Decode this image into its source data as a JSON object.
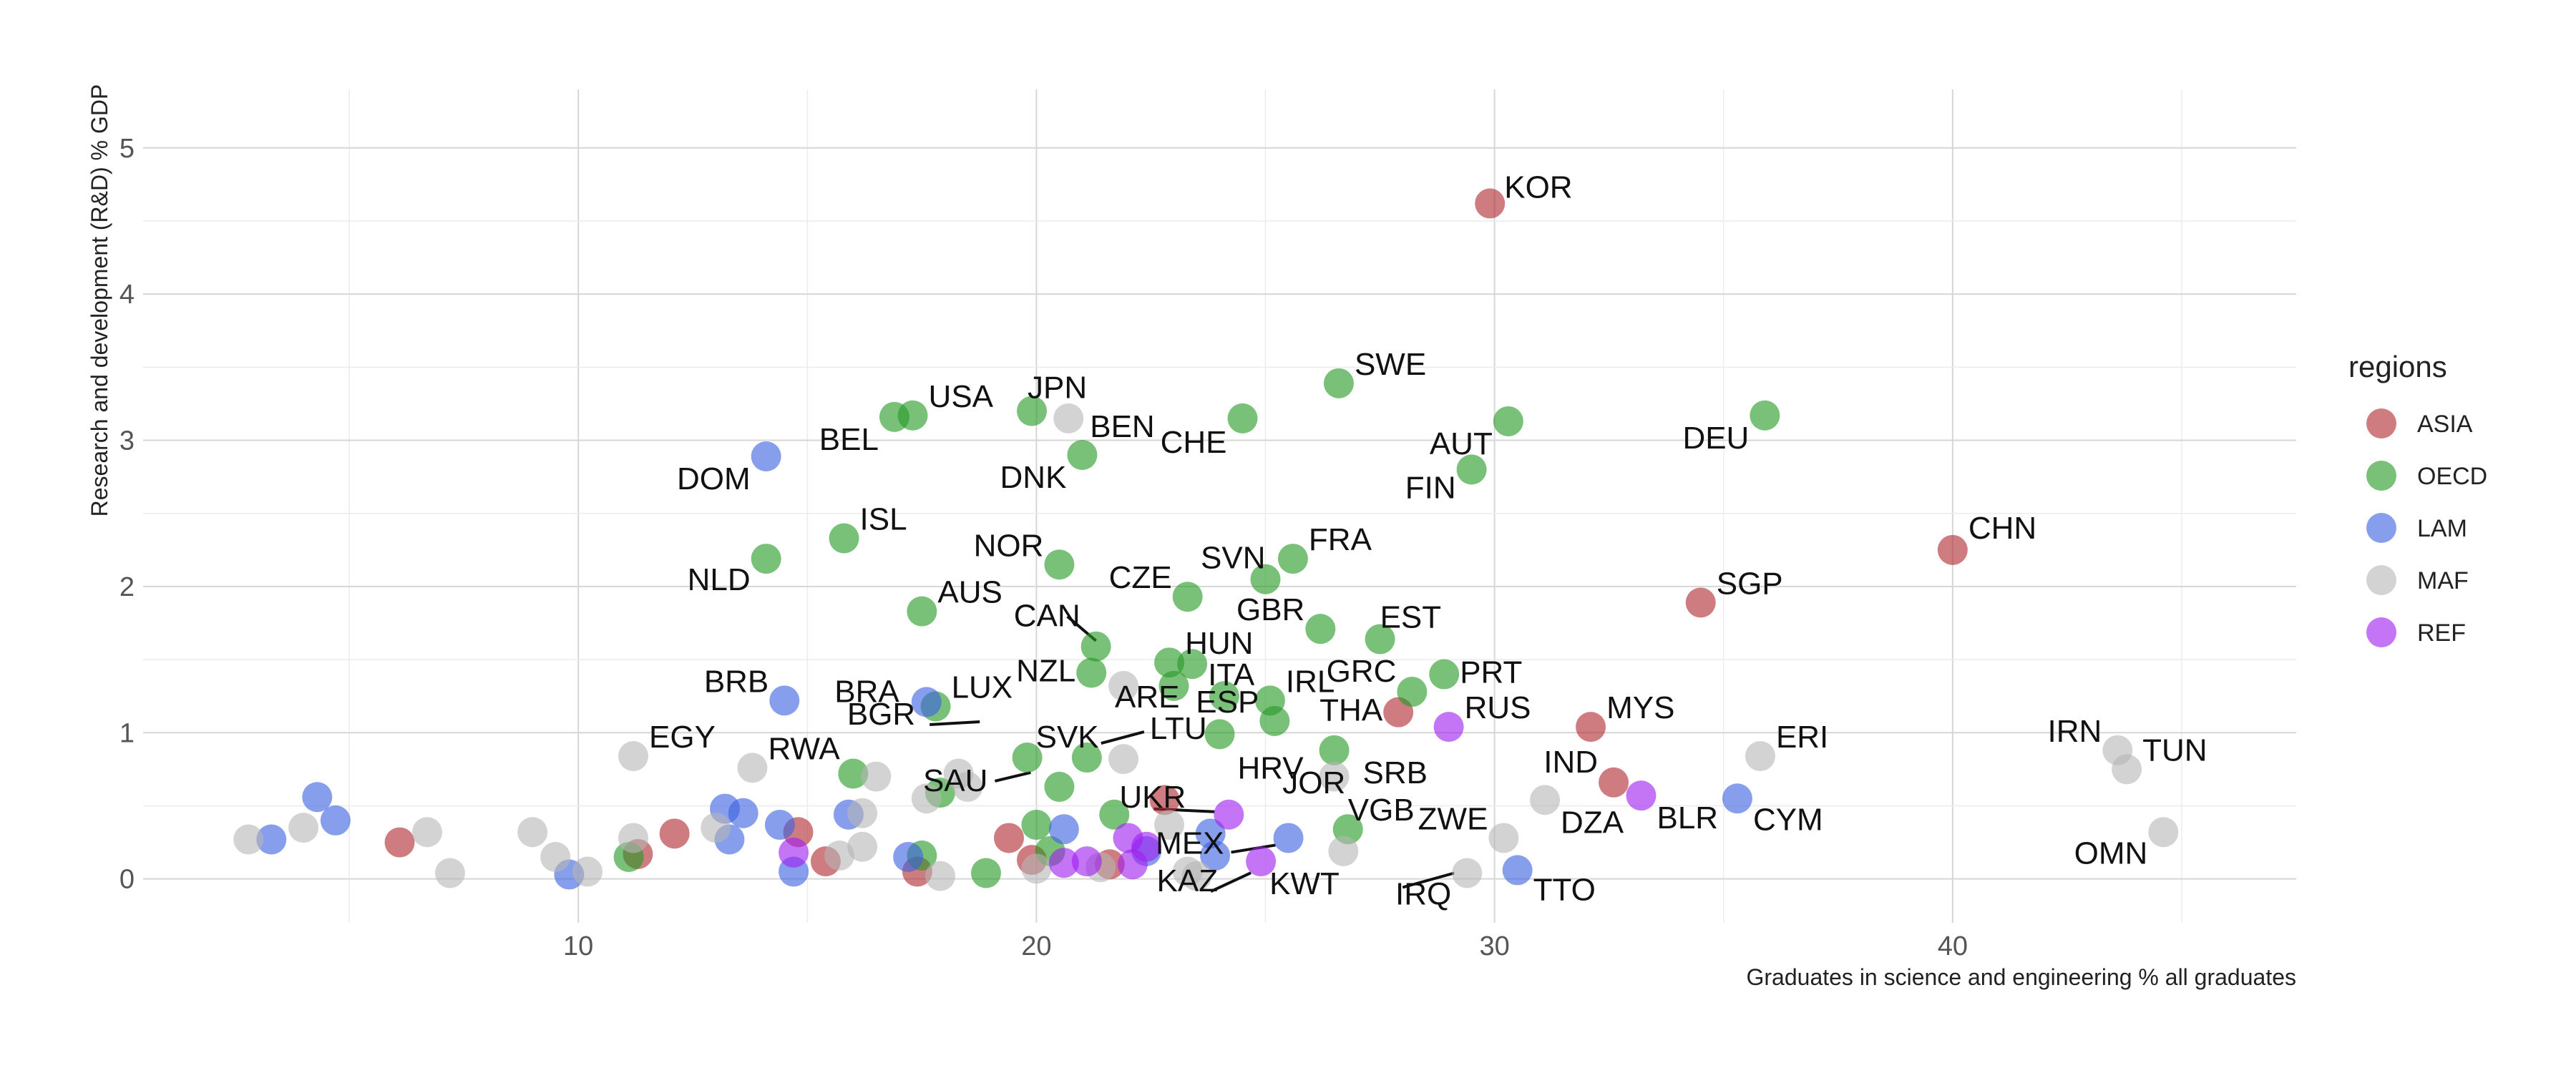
{
  "chart_data": {
    "type": "scatter",
    "xlabel": "Graduates in science and engineering % all graduates",
    "ylabel": "Research and development (R&D) % GDP",
    "xlim": [
      0.5,
      47.5
    ],
    "ylim": [
      -0.3,
      5.4
    ],
    "x_ticks": [
      10,
      20,
      30,
      40
    ],
    "y_ticks": [
      0,
      1,
      2,
      3,
      4,
      5
    ],
    "grid": true,
    "legend": {
      "title": "regions",
      "position": "right",
      "entries": [
        {
          "name": "ASIA",
          "color": "#b22b34"
        },
        {
          "name": "OECD",
          "color": "#279a27"
        },
        {
          "name": "LAM",
          "color": "#3d63e0"
        },
        {
          "name": "MAF",
          "color": "#b5b5b5"
        },
        {
          "name": "REF",
          "color": "#a020f0"
        }
      ]
    },
    "points": [
      {
        "x": 29.9,
        "y": 4.62,
        "region": "ASIA",
        "label": "KOR"
      },
      {
        "x": 40.0,
        "y": 2.25,
        "region": "ASIA",
        "label": "CHN"
      },
      {
        "x": 34.5,
        "y": 1.89,
        "region": "ASIA",
        "label": "SGP"
      },
      {
        "x": 32.1,
        "y": 1.04,
        "region": "ASIA",
        "label": "MYS"
      },
      {
        "x": 27.9,
        "y": 1.14,
        "region": "ASIA",
        "label": "THA"
      },
      {
        "x": 32.6,
        "y": 0.66,
        "region": "ASIA",
        "label": "IND"
      },
      {
        "x": 22.8,
        "y": 0.54,
        "region": "ASIA",
        "label": ""
      },
      {
        "x": 6.1,
        "y": 0.25,
        "region": "ASIA",
        "label": ""
      },
      {
        "x": 12.1,
        "y": 0.31,
        "region": "ASIA",
        "label": ""
      },
      {
        "x": 11.3,
        "y": 0.17,
        "region": "ASIA",
        "label": ""
      },
      {
        "x": 14.8,
        "y": 0.32,
        "region": "ASIA",
        "label": ""
      },
      {
        "x": 15.4,
        "y": 0.12,
        "region": "ASIA",
        "label": ""
      },
      {
        "x": 17.4,
        "y": 0.05,
        "region": "ASIA",
        "label": ""
      },
      {
        "x": 19.4,
        "y": 0.28,
        "region": "ASIA",
        "label": ""
      },
      {
        "x": 19.9,
        "y": 0.13,
        "region": "ASIA",
        "label": ""
      },
      {
        "x": 21.6,
        "y": 0.1,
        "region": "ASIA",
        "label": ""
      },
      {
        "x": 26.6,
        "y": 3.39,
        "region": "OECD",
        "label": "SWE"
      },
      {
        "x": 30.3,
        "y": 3.13,
        "region": "OECD",
        "label": "AUT"
      },
      {
        "x": 35.9,
        "y": 3.17,
        "region": "OECD",
        "label": "DEU"
      },
      {
        "x": 29.5,
        "y": 2.8,
        "region": "OECD",
        "label": "FIN"
      },
      {
        "x": 17.3,
        "y": 3.17,
        "region": "OECD",
        "label": "USA"
      },
      {
        "x": 16.9,
        "y": 3.16,
        "region": "OECD",
        "label": "BEL"
      },
      {
        "x": 19.9,
        "y": 3.2,
        "region": "OECD",
        "label": "JPN"
      },
      {
        "x": 24.5,
        "y": 3.15,
        "region": "OECD",
        "label": "CHE"
      },
      {
        "x": 21.0,
        "y": 2.9,
        "region": "OECD",
        "label": "DNK"
      },
      {
        "x": 15.8,
        "y": 2.33,
        "region": "OECD",
        "label": "ISL"
      },
      {
        "x": 14.1,
        "y": 2.19,
        "region": "OECD",
        "label": "NLD"
      },
      {
        "x": 20.5,
        "y": 2.15,
        "region": "OECD",
        "label": "NOR"
      },
      {
        "x": 25.6,
        "y": 2.19,
        "region": "OECD",
        "label": "FRA"
      },
      {
        "x": 25.0,
        "y": 2.05,
        "region": "OECD",
        "label": "SVN"
      },
      {
        "x": 23.3,
        "y": 1.93,
        "region": "OECD",
        "label": "CZE"
      },
      {
        "x": 17.5,
        "y": 1.83,
        "region": "OECD",
        "label": "AUS"
      },
      {
        "x": 26.2,
        "y": 1.71,
        "region": "OECD",
        "label": "GBR"
      },
      {
        "x": 27.5,
        "y": 1.64,
        "region": "OECD",
        "label": "EST"
      },
      {
        "x": 21.3,
        "y": 1.59,
        "region": "OECD",
        "label": "CAN"
      },
      {
        "x": 21.2,
        "y": 1.41,
        "region": "OECD",
        "label": "NZL"
      },
      {
        "x": 22.9,
        "y": 1.48,
        "region": "OECD",
        "label": "HUN"
      },
      {
        "x": 23.4,
        "y": 1.47,
        "region": "OECD",
        "label": "ITA"
      },
      {
        "x": 23.0,
        "y": 1.32,
        "region": "OECD",
        "label": ""
      },
      {
        "x": 24.1,
        "y": 1.25,
        "region": "OECD",
        "label": ""
      },
      {
        "x": 28.9,
        "y": 1.4,
        "region": "OECD",
        "label": "PRT"
      },
      {
        "x": 28.2,
        "y": 1.28,
        "region": "OECD",
        "label": "GRC"
      },
      {
        "x": 25.1,
        "y": 1.22,
        "region": "OECD",
        "label": "IRL"
      },
      {
        "x": 25.2,
        "y": 1.08,
        "region": "OECD",
        "label": "ESP"
      },
      {
        "x": 24.0,
        "y": 0.99,
        "region": "OECD",
        "label": ""
      },
      {
        "x": 17.8,
        "y": 1.18,
        "region": "OECD",
        "label": "LUX"
      },
      {
        "x": 19.8,
        "y": 0.83,
        "region": "OECD",
        "label": "SVK"
      },
      {
        "x": 20.5,
        "y": 0.63,
        "region": "OECD",
        "label": ""
      },
      {
        "x": 21.1,
        "y": 0.83,
        "region": "OECD",
        "label": ""
      },
      {
        "x": 26.5,
        "y": 0.88,
        "region": "OECD",
        "label": ""
      },
      {
        "x": 16.0,
        "y": 0.72,
        "region": "OECD",
        "label": ""
      },
      {
        "x": 17.9,
        "y": 0.59,
        "region": "OECD",
        "label": ""
      },
      {
        "x": 26.8,
        "y": 0.34,
        "region": "OECD",
        "label": ""
      },
      {
        "x": 20.0,
        "y": 0.37,
        "region": "OECD",
        "label": ""
      },
      {
        "x": 20.3,
        "y": 0.19,
        "region": "OECD",
        "label": ""
      },
      {
        "x": 21.7,
        "y": 0.44,
        "region": "OECD",
        "label": ""
      },
      {
        "x": 17.5,
        "y": 0.16,
        "region": "OECD",
        "label": ""
      },
      {
        "x": 18.9,
        "y": 0.04,
        "region": "OECD",
        "label": ""
      },
      {
        "x": 11.1,
        "y": 0.15,
        "region": "OECD",
        "label": ""
      },
      {
        "x": 14.1,
        "y": 2.89,
        "region": "LAM",
        "label": "DOM"
      },
      {
        "x": 14.5,
        "y": 1.22,
        "region": "LAM",
        "label": "BRB"
      },
      {
        "x": 17.6,
        "y": 1.21,
        "region": "LAM",
        "label": "BRA"
      },
      {
        "x": 35.3,
        "y": 0.55,
        "region": "LAM",
        "label": "CYM"
      },
      {
        "x": 30.5,
        "y": 0.06,
        "region": "LAM",
        "label": "TTO"
      },
      {
        "x": 25.5,
        "y": 0.28,
        "region": "LAM",
        "label": ""
      },
      {
        "x": 3.3,
        "y": 0.27,
        "region": "LAM",
        "label": ""
      },
      {
        "x": 4.3,
        "y": 0.56,
        "region": "LAM",
        "label": ""
      },
      {
        "x": 4.7,
        "y": 0.4,
        "region": "LAM",
        "label": ""
      },
      {
        "x": 9.8,
        "y": 0.03,
        "region": "LAM",
        "label": ""
      },
      {
        "x": 13.2,
        "y": 0.48,
        "region": "LAM",
        "label": ""
      },
      {
        "x": 13.6,
        "y": 0.45,
        "region": "LAM",
        "label": ""
      },
      {
        "x": 13.3,
        "y": 0.27,
        "region": "LAM",
        "label": ""
      },
      {
        "x": 14.4,
        "y": 0.37,
        "region": "LAM",
        "label": ""
      },
      {
        "x": 15.9,
        "y": 0.44,
        "region": "LAM",
        "label": ""
      },
      {
        "x": 14.7,
        "y": 0.05,
        "region": "LAM",
        "label": ""
      },
      {
        "x": 17.2,
        "y": 0.15,
        "region": "LAM",
        "label": ""
      },
      {
        "x": 20.6,
        "y": 0.34,
        "region": "LAM",
        "label": ""
      },
      {
        "x": 22.4,
        "y": 0.19,
        "region": "LAM",
        "label": ""
      },
      {
        "x": 23.8,
        "y": 0.31,
        "region": "LAM",
        "label": ""
      },
      {
        "x": 23.9,
        "y": 0.16,
        "region": "LAM",
        "label": ""
      },
      {
        "x": 20.7,
        "y": 3.15,
        "region": "MAF",
        "label": "BEN"
      },
      {
        "x": 11.2,
        "y": 0.84,
        "region": "MAF",
        "label": "EGY"
      },
      {
        "x": 13.8,
        "y": 0.76,
        "region": "MAF",
        "label": "RWA"
      },
      {
        "x": 21.9,
        "y": 1.32,
        "region": "MAF",
        "label": "ARE"
      },
      {
        "x": 35.8,
        "y": 0.84,
        "region": "MAF",
        "label": "ERI"
      },
      {
        "x": 43.6,
        "y": 0.88,
        "region": "MAF",
        "label": "IRN"
      },
      {
        "x": 43.8,
        "y": 0.75,
        "region": "MAF",
        "label": "TUN"
      },
      {
        "x": 44.6,
        "y": 0.32,
        "region": "MAF",
        "label": "OMN"
      },
      {
        "x": 31.1,
        "y": 0.54,
        "region": "MAF",
        "label": "DZA"
      },
      {
        "x": 30.2,
        "y": 0.28,
        "region": "MAF",
        "label": "ZWE"
      },
      {
        "x": 29.4,
        "y": 0.04,
        "region": "MAF",
        "label": "IRQ"
      },
      {
        "x": 26.5,
        "y": 0.7,
        "region": "MAF",
        "label": ""
      },
      {
        "x": 21.9,
        "y": 0.82,
        "region": "MAF",
        "label": ""
      },
      {
        "x": 26.7,
        "y": 0.19,
        "region": "MAF",
        "label": ""
      },
      {
        "x": 2.8,
        "y": 0.27,
        "region": "MAF",
        "label": ""
      },
      {
        "x": 4.0,
        "y": 0.35,
        "region": "MAF",
        "label": ""
      },
      {
        "x": 6.7,
        "y": 0.32,
        "region": "MAF",
        "label": ""
      },
      {
        "x": 7.2,
        "y": 0.04,
        "region": "MAF",
        "label": ""
      },
      {
        "x": 9.0,
        "y": 0.32,
        "region": "MAF",
        "label": ""
      },
      {
        "x": 9.5,
        "y": 0.15,
        "region": "MAF",
        "label": ""
      },
      {
        "x": 10.2,
        "y": 0.05,
        "region": "MAF",
        "label": ""
      },
      {
        "x": 11.2,
        "y": 0.28,
        "region": "MAF",
        "label": ""
      },
      {
        "x": 13.0,
        "y": 0.35,
        "region": "MAF",
        "label": ""
      },
      {
        "x": 15.7,
        "y": 0.16,
        "region": "MAF",
        "label": ""
      },
      {
        "x": 16.2,
        "y": 0.45,
        "region": "MAF",
        "label": ""
      },
      {
        "x": 16.2,
        "y": 0.22,
        "region": "MAF",
        "label": ""
      },
      {
        "x": 16.5,
        "y": 0.7,
        "region": "MAF",
        "label": ""
      },
      {
        "x": 17.6,
        "y": 0.55,
        "region": "MAF",
        "label": ""
      },
      {
        "x": 18.3,
        "y": 0.72,
        "region": "MAF",
        "label": ""
      },
      {
        "x": 18.5,
        "y": 0.63,
        "region": "MAF",
        "label": ""
      },
      {
        "x": 17.9,
        "y": 0.02,
        "region": "MAF",
        "label": ""
      },
      {
        "x": 20.0,
        "y": 0.07,
        "region": "MAF",
        "label": ""
      },
      {
        "x": 21.4,
        "y": 0.08,
        "region": "MAF",
        "label": ""
      },
      {
        "x": 22.9,
        "y": 0.37,
        "region": "MAF",
        "label": ""
      },
      {
        "x": 23.3,
        "y": 0.05,
        "region": "MAF",
        "label": ""
      },
      {
        "x": 23.5,
        "y": 0.02,
        "region": "MAF",
        "label": ""
      },
      {
        "x": 29.0,
        "y": 1.04,
        "region": "REF",
        "label": "RUS"
      },
      {
        "x": 33.2,
        "y": 0.57,
        "region": "REF",
        "label": "BLR"
      },
      {
        "x": 24.2,
        "y": 0.44,
        "region": "REF",
        "label": "UKR"
      },
      {
        "x": 24.9,
        "y": 0.12,
        "region": "REF",
        "label": "KAZ"
      },
      {
        "x": 14.7,
        "y": 0.18,
        "region": "REF",
        "label": ""
      },
      {
        "x": 20.6,
        "y": 0.11,
        "region": "REF",
        "label": ""
      },
      {
        "x": 21.1,
        "y": 0.12,
        "region": "REF",
        "label": ""
      },
      {
        "x": 22.0,
        "y": 0.28,
        "region": "REF",
        "label": ""
      },
      {
        "x": 22.1,
        "y": 0.1,
        "region": "REF",
        "label": ""
      },
      {
        "x": 22.4,
        "y": 0.22,
        "region": "REF",
        "label": ""
      }
    ],
    "annotations": [
      {
        "text": "BGR",
        "x": 19.7,
        "y": 0.83
      },
      {
        "text": "SAU",
        "x": 20.5,
        "y": 0.63
      },
      {
        "text": "LTU",
        "x": 21.1,
        "y": 0.83
      },
      {
        "text": "HRV",
        "x": 24.0,
        "y": 0.99
      },
      {
        "text": "SRB",
        "x": 26.5,
        "y": 0.88
      },
      {
        "text": "VGB",
        "x": 26.8,
        "y": 0.34
      },
      {
        "text": "JOR",
        "x": 24.2,
        "y": 0.44
      },
      {
        "text": "MEX",
        "x": 25.5,
        "y": 0.28
      },
      {
        "text": "KWT",
        "x": 24.9,
        "y": 0.12
      }
    ]
  }
}
